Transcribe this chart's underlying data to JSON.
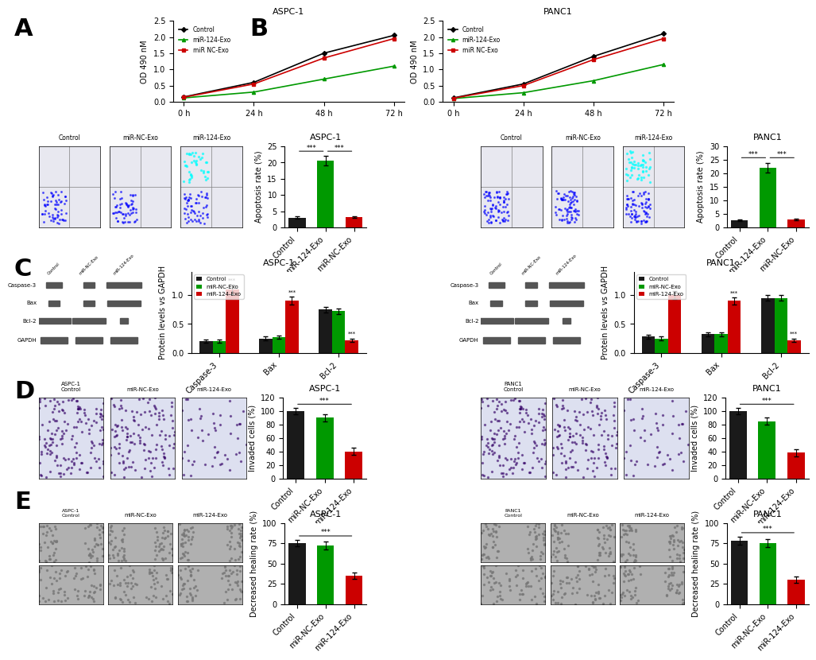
{
  "panel_A": {
    "title_aspc": "ASPC-1",
    "title_panc": "PANC1",
    "xlabel": "",
    "ylabel": "OD 490 nM",
    "x": [
      0,
      24,
      48,
      72
    ],
    "xlabels": [
      "0 h",
      "24 h",
      "48 h",
      "72 h"
    ],
    "aspc1": {
      "control": [
        0.15,
        0.6,
        1.5,
        2.05
      ],
      "miR124Exo": [
        0.12,
        0.3,
        0.7,
        1.1
      ],
      "miRNCExo": [
        0.14,
        0.55,
        1.35,
        1.95
      ]
    },
    "panc1": {
      "control": [
        0.12,
        0.55,
        1.4,
        2.1
      ],
      "miR124Exo": [
        0.1,
        0.28,
        0.65,
        1.15
      ],
      "miRNCExo": [
        0.11,
        0.5,
        1.3,
        1.95
      ]
    },
    "colors": {
      "control": "#000000",
      "miR124Exo": "#009900",
      "miRNCExo": "#cc0000"
    },
    "legend": [
      "Control",
      "miR-124-Exo",
      "miR NC-Exo"
    ]
  },
  "panel_B": {
    "aspc1": {
      "title": "ASPC-1",
      "ylabel": "Apoptosis rate (%)",
      "categories": [
        "Control",
        "miR-124-Exo",
        "miR-NC-Exo"
      ],
      "values": [
        3.0,
        20.5,
        3.2
      ],
      "errors": [
        0.3,
        1.5,
        0.3
      ],
      "colors": [
        "#1a1a1a",
        "#009900",
        "#cc0000"
      ],
      "ylim": [
        0,
        25
      ],
      "yticks": [
        0,
        5,
        10,
        15,
        20,
        25
      ]
    },
    "panc1": {
      "title": "PANC1",
      "ylabel": "Apoptosis rate (%)",
      "categories": [
        "Control",
        "miR-124-Exo",
        "miR-NC-Exo"
      ],
      "values": [
        2.5,
        22.0,
        2.8
      ],
      "errors": [
        0.3,
        1.8,
        0.3
      ],
      "colors": [
        "#1a1a1a",
        "#009900",
        "#cc0000"
      ],
      "ylim": [
        0,
        30
      ],
      "yticks": [
        0,
        5,
        10,
        15,
        20,
        25,
        30
      ]
    }
  },
  "panel_C": {
    "aspc1": {
      "title": "ASPC-1",
      "ylabel": "Protein levels vs GAPDH",
      "categories": [
        "Caspase-3",
        "Bax",
        "Bcl-2"
      ],
      "control": [
        0.2,
        0.25,
        0.75
      ],
      "miRNCExo": [
        0.2,
        0.27,
        0.72
      ],
      "miR124Exo": [
        1.1,
        0.9,
        0.22
      ],
      "errors_ctrl": [
        0.03,
        0.03,
        0.05
      ],
      "errors_nc": [
        0.03,
        0.03,
        0.05
      ],
      "errors_124": [
        0.08,
        0.07,
        0.03
      ],
      "ylim": [
        0,
        1.4
      ],
      "yticks": [
        0.0,
        0.5,
        1.0
      ]
    },
    "panc1": {
      "title": "PANC1",
      "ylabel": "Protein levels vs GAPDH",
      "categories": [
        "Caspase-3",
        "Bax",
        "Bcl-2"
      ],
      "control": [
        0.28,
        0.32,
        0.95
      ],
      "miRNCExo": [
        0.25,
        0.32,
        0.95
      ],
      "miR124Exo": [
        1.0,
        0.9,
        0.22
      ],
      "errors_ctrl": [
        0.03,
        0.03,
        0.05
      ],
      "errors_nc": [
        0.03,
        0.03,
        0.05
      ],
      "errors_124": [
        0.07,
        0.06,
        0.03
      ],
      "ylim": [
        0,
        1.4
      ],
      "yticks": [
        0.0,
        0.5,
        1.0
      ]
    },
    "colors": {
      "control": "#1a1a1a",
      "miRNCExo": "#009900",
      "miR124Exo": "#cc0000"
    },
    "legend": [
      "Control",
      "miR-NC-Exo",
      "miR-124-Exo"
    ]
  },
  "panel_D": {
    "aspc1": {
      "title": "ASPC-1",
      "ylabel": "Invaded cells (%)",
      "categories": [
        "Control",
        "miR-NC-Exo",
        "miR-124-Exo"
      ],
      "values": [
        100,
        90,
        40
      ],
      "errors": [
        5,
        5,
        5
      ],
      "colors": [
        "#1a1a1a",
        "#009900",
        "#cc0000"
      ],
      "ylim": [
        0,
        120
      ],
      "yticks": [
        0,
        20,
        40,
        60,
        80,
        100,
        120
      ]
    },
    "panc1": {
      "title": "PANC1",
      "ylabel": "Invaded cells (%)",
      "categories": [
        "Control",
        "miR-NC-Exo",
        "miR-124-Exo"
      ],
      "values": [
        100,
        85,
        38
      ],
      "errors": [
        5,
        5,
        5
      ],
      "colors": [
        "#1a1a1a",
        "#009900",
        "#cc0000"
      ],
      "ylim": [
        0,
        120
      ],
      "yticks": [
        0,
        20,
        40,
        60,
        80,
        100,
        120
      ]
    }
  },
  "panel_E": {
    "aspc1": {
      "title": "ASPC-1",
      "ylabel": "Decreased healing rate (%)",
      "categories": [
        "Control",
        "miR-NC-Exo",
        "miR-124-Exo"
      ],
      "values": [
        75,
        72,
        35
      ],
      "errors": [
        4,
        5,
        4
      ],
      "colors": [
        "#1a1a1a",
        "#009900",
        "#cc0000"
      ],
      "ylim": [
        0,
        100
      ],
      "yticks": [
        0,
        25,
        50,
        75,
        100
      ]
    },
    "panc1": {
      "title": "PANC1",
      "ylabel": "Decreased healing rate (%)",
      "categories": [
        "Control",
        "miR-NC-Exo",
        "miR-124-Exo"
      ],
      "values": [
        78,
        75,
        30
      ],
      "errors": [
        5,
        5,
        4
      ],
      "colors": [
        "#1a1a1a",
        "#009900",
        "#cc0000"
      ],
      "ylim": [
        0,
        100
      ],
      "yticks": [
        0,
        25,
        50,
        75,
        100
      ]
    }
  },
  "bg_color": "#ffffff",
  "label_fontsize": 22,
  "tick_fontsize": 7,
  "axis_fontsize": 7,
  "title_fontsize": 8
}
